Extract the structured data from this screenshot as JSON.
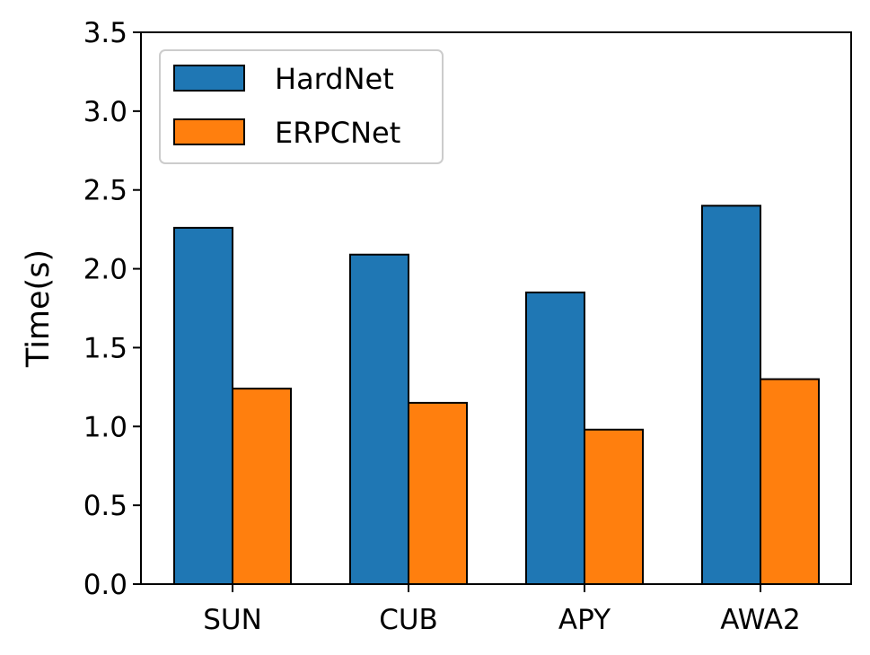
{
  "chart_data": {
    "type": "bar",
    "categories": [
      "SUN",
      "CUB",
      "APY",
      "AWA2"
    ],
    "series": [
      {
        "name": "HardNet",
        "values": [
          2.26,
          2.09,
          1.85,
          2.4
        ],
        "color": "#1f77b4"
      },
      {
        "name": "ERPCNet",
        "values": [
          1.24,
          1.15,
          0.98,
          1.3
        ],
        "color": "#ff7f0e"
      }
    ],
    "title": "",
    "xlabel": "",
    "ylabel": "Time(s)",
    "ylim": [
      0,
      3.5
    ],
    "yticks": [
      "0.0",
      "0.5",
      "1.0",
      "1.5",
      "2.0",
      "2.5",
      "3.0",
      "3.5"
    ],
    "grid": false,
    "legend_position": "top-left"
  }
}
